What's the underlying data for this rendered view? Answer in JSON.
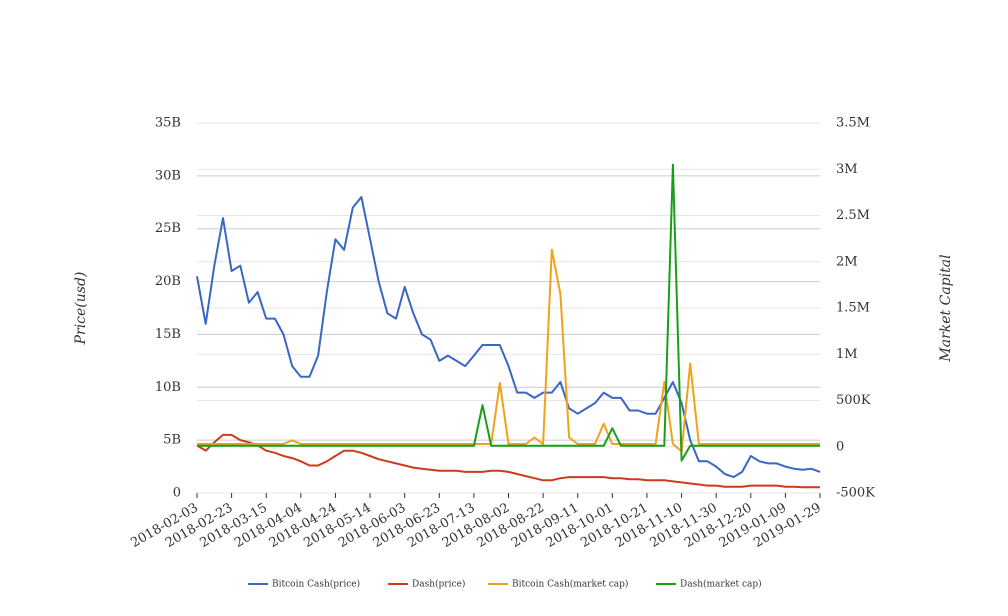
{
  "chart_data": {
    "type": "line",
    "y_label": "Price(usd)",
    "y2_label": "Market Capital",
    "x": [
      "2018-02-03",
      "2018-02-08",
      "2018-02-13",
      "2018-02-18",
      "2018-02-23",
      "2018-02-28",
      "2018-03-05",
      "2018-03-10",
      "2018-03-15",
      "2018-03-20",
      "2018-03-25",
      "2018-03-30",
      "2018-04-04",
      "2018-04-09",
      "2018-04-14",
      "2018-04-19",
      "2018-04-24",
      "2018-04-29",
      "2018-05-04",
      "2018-05-09",
      "2018-05-14",
      "2018-05-19",
      "2018-05-24",
      "2018-05-29",
      "2018-06-03",
      "2018-06-08",
      "2018-06-13",
      "2018-06-18",
      "2018-06-23",
      "2018-06-28",
      "2018-07-03",
      "2018-07-08",
      "2018-07-13",
      "2018-07-18",
      "2018-07-23",
      "2018-07-28",
      "2018-08-02",
      "2018-08-07",
      "2018-08-12",
      "2018-08-17",
      "2018-08-22",
      "2018-08-27",
      "2018-09-01",
      "2018-09-06",
      "2018-09-11",
      "2018-09-16",
      "2018-09-21",
      "2018-09-26",
      "2018-10-01",
      "2018-10-06",
      "2018-10-11",
      "2018-10-16",
      "2018-10-21",
      "2018-10-26",
      "2018-10-31",
      "2018-11-05",
      "2018-11-10",
      "2018-11-15",
      "2018-11-20",
      "2018-11-25",
      "2018-11-30",
      "2018-12-05",
      "2018-12-10",
      "2018-12-15",
      "2018-12-20",
      "2018-12-25",
      "2018-12-30",
      "2019-01-04",
      "2019-01-09",
      "2019-01-14",
      "2019-01-19",
      "2019-01-24",
      "2019-01-29"
    ],
    "xlim": [
      "2018-02-03",
      "2019-01-29"
    ],
    "xticks": [
      "2018-02-03",
      "2018-02-23",
      "2018-03-15",
      "2018-04-04",
      "2018-04-24",
      "2018-05-14",
      "2018-06-03",
      "2018-06-23",
      "2018-07-13",
      "2018-08-02",
      "2018-08-22",
      "2018-09-11",
      "2018-10-01",
      "2018-10-21",
      "2018-11-10",
      "2018-11-30",
      "2018-12-20",
      "2019-01-09",
      "2019-01-29"
    ],
    "ylim": [
      0,
      35000000000.0
    ],
    "yticks": [
      0,
      {
        "value": 5000000000.0,
        "label": "5B"
      },
      {
        "value": 10000000000.0,
        "label": "10B"
      },
      {
        "value": 15000000000.0,
        "label": "15B"
      },
      {
        "value": 20000000000.0,
        "label": "20B"
      },
      {
        "value": 25000000000.0,
        "label": "25B"
      },
      {
        "value": 30000000000.0,
        "label": "30B"
      },
      {
        "value": 35000000000.0,
        "label": "35B"
      }
    ],
    "y2lim": [
      -500000,
      3500000
    ],
    "y2ticks": [
      {
        "value": -500000,
        "label": "-500K"
      },
      0,
      {
        "value": 500000,
        "label": "500K"
      },
      {
        "value": 1000000,
        "label": "1M"
      },
      {
        "value": 1500000,
        "label": "1.5M"
      },
      {
        "value": 2000000,
        "label": "2M"
      },
      {
        "value": 2500000,
        "label": "2.5M"
      },
      {
        "value": 3000000,
        "label": "3M"
      },
      {
        "value": 3500000,
        "label": "3.5M"
      }
    ],
    "grid": true,
    "legend": "bottom",
    "series": [
      {
        "name": "Bitcoin Cash(price)",
        "color": "#3a66c4",
        "values": [
          20500000000.0,
          16000000000.0,
          21500000000.0,
          26000000000.0,
          21000000000.0,
          21500000000.0,
          18000000000.0,
          19000000000.0,
          16500000000.0,
          16500000000.0,
          15000000000.0,
          12000000000.0,
          11000000000.0,
          11000000000.0,
          13000000000.0,
          19000000000.0,
          24000000000.0,
          23000000000.0,
          27000000000.0,
          28000000000.0,
          24000000000.0,
          20000000000.0,
          17000000000.0,
          16500000000.0,
          19500000000.0,
          17000000000.0,
          15000000000.0,
          14500000000.0,
          12500000000.0,
          13000000000.0,
          12500000000.0,
          12000000000.0,
          13000000000.0,
          14000000000.0,
          14000000000.0,
          14000000000.0,
          12000000000.0,
          9500000000.0,
          9500000000.0,
          9000000000.0,
          9500000000.0,
          9500000000.0,
          10500000000.0,
          8000000000.0,
          7500000000.0,
          8000000000.0,
          8500000000.0,
          9500000000.0,
          9000000000.0,
          9000000000.0,
          7800000000.0,
          7800000000.0,
          7500000000.0,
          7500000000.0,
          9000000000.0,
          10500000000.0,
          8500000000.0,
          5000000000.0,
          3000000000.0,
          3000000000.0,
          2500000000.0,
          1800000000.0,
          1500000000.0,
          2000000000.0,
          3500000000.0,
          3000000000.0,
          2800000000.0,
          2800000000.0,
          2500000000.0,
          2300000000.0,
          2200000000.0,
          2300000000.0,
          2000000000.0
        ]
      },
      {
        "name": "Dash(price)",
        "color": "#cc3b1a",
        "values": [
          4500000000.0,
          4000000000.0,
          4800000000.0,
          5500000000.0,
          5500000000.0,
          5000000000.0,
          4800000000.0,
          4500000000.0,
          4000000000.0,
          3800000000.0,
          3500000000.0,
          3300000000.0,
          3000000000.0,
          2600000000.0,
          2600000000.0,
          3000000000.0,
          3500000000.0,
          4000000000.0,
          4000000000.0,
          3800000000.0,
          3500000000.0,
          3200000000.0,
          3000000000.0,
          2800000000.0,
          2600000000.0,
          2400000000.0,
          2300000000.0,
          2200000000.0,
          2100000000.0,
          2100000000.0,
          2100000000.0,
          2000000000.0,
          2000000000.0,
          2000000000.0,
          2100000000.0,
          2100000000.0,
          2000000000.0,
          1800000000.0,
          1600000000.0,
          1400000000.0,
          1200000000.0,
          1200000000.0,
          1400000000.0,
          1500000000.0,
          1500000000.0,
          1500000000.0,
          1500000000.0,
          1500000000.0,
          1400000000.0,
          1400000000.0,
          1300000000.0,
          1300000000.0,
          1200000000.0,
          1200000000.0,
          1200000000.0,
          1100000000.0,
          1000000000.0,
          900000000.0,
          800000000.0,
          700000000.0,
          700000000.0,
          600000000.0,
          600000000.0,
          600000000.0,
          700000000.0,
          700000000.0,
          700000000.0,
          700000000.0,
          600000000.0,
          600000000.0,
          550000000.0,
          550000000.0,
          550000000.0
        ]
      },
      {
        "name": "Bitcoin Cash(market cap)",
        "color": "#f2a218",
        "axis": "y2",
        "values": [
          30000,
          30000,
          30000,
          30000,
          30000,
          30000,
          30000,
          30000,
          30000,
          30000,
          30000,
          70000,
          30000,
          30000,
          30000,
          30000,
          30000,
          30000,
          30000,
          30000,
          30000,
          30000,
          30000,
          30000,
          30000,
          30000,
          30000,
          30000,
          30000,
          30000,
          30000,
          30000,
          30000,
          30000,
          30000,
          690000,
          30000,
          30000,
          30000,
          100000,
          30000,
          2130000,
          1650000,
          100000,
          30000,
          30000,
          30000,
          250000,
          30000,
          30000,
          30000,
          30000,
          30000,
          30000,
          700000,
          30000,
          -50000,
          900000,
          30000,
          30000,
          30000,
          30000,
          30000,
          30000,
          30000,
          30000,
          30000,
          30000,
          30000,
          30000,
          30000,
          30000,
          30000
        ]
      },
      {
        "name": "Dash(market cap)",
        "color": "#1a9e1a",
        "axis": "y2",
        "values": [
          10000,
          10000,
          10000,
          10000,
          10000,
          10000,
          10000,
          10000,
          10000,
          10000,
          10000,
          10000,
          10000,
          10000,
          10000,
          10000,
          10000,
          10000,
          10000,
          10000,
          10000,
          10000,
          10000,
          10000,
          10000,
          10000,
          10000,
          10000,
          10000,
          10000,
          10000,
          10000,
          10000,
          450000,
          10000,
          10000,
          10000,
          10000,
          10000,
          10000,
          10000,
          10000,
          10000,
          10000,
          10000,
          10000,
          10000,
          10000,
          200000,
          10000,
          10000,
          10000,
          10000,
          10000,
          10000,
          3050000,
          -150000,
          10000,
          10000,
          10000,
          10000,
          10000,
          10000,
          10000,
          10000,
          10000,
          10000,
          10000,
          10000,
          10000,
          10000,
          10000,
          10000
        ]
      }
    ]
  }
}
